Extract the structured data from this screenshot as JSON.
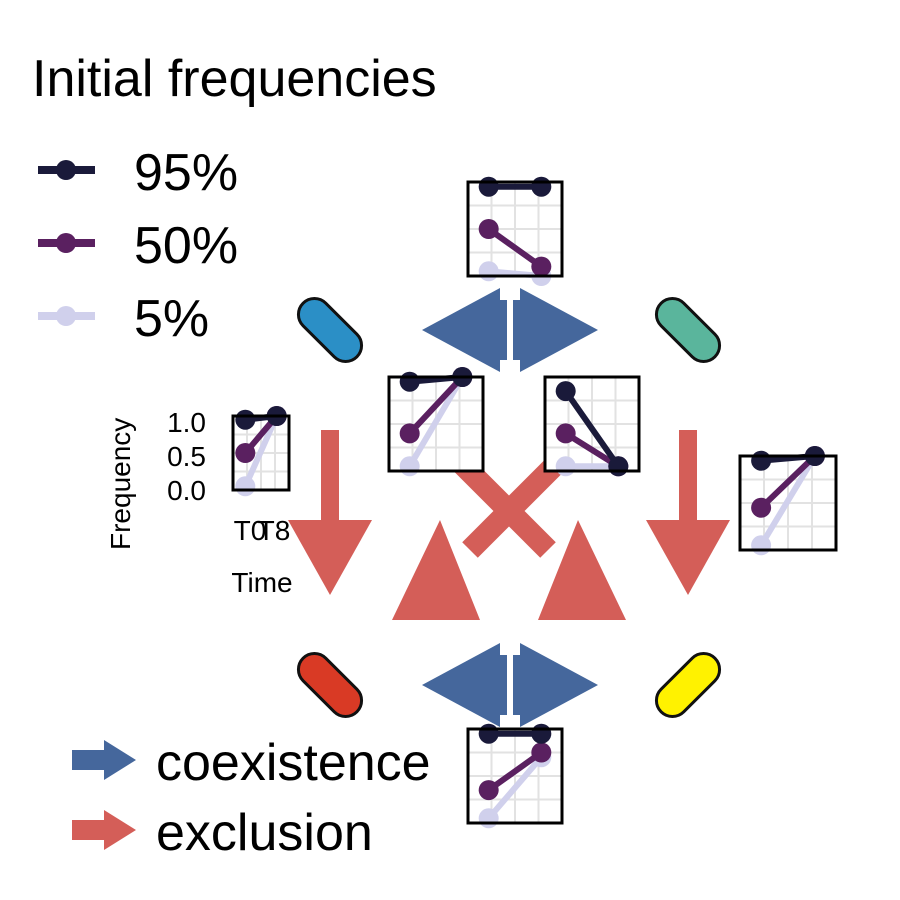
{
  "legend_frequencies": {
    "title": "Initial frequencies",
    "items": [
      {
        "label": "95%",
        "color": "#1a1a3a"
      },
      {
        "label": "50%",
        "color": "#5a2060"
      },
      {
        "label": "5%",
        "color": "#d0d0ec"
      }
    ]
  },
  "legend_interactions": {
    "items": [
      {
        "label": "coexistence",
        "color": "#45679c"
      },
      {
        "label": "exclusion",
        "color": "#d45e58"
      }
    ]
  },
  "species": [
    {
      "name": "blue-species",
      "color": "#2b8fc6"
    },
    {
      "name": "teal-species",
      "color": "#5ab59c"
    },
    {
      "name": "red-species",
      "color": "#d93a25"
    },
    {
      "name": "yellow-species",
      "color": "#fff200"
    }
  ],
  "axis": {
    "ylabel": "Frequency",
    "xlabel": "Time",
    "yticks": [
      "1.0",
      "0.5",
      "0.0"
    ],
    "xticks": [
      "T0",
      "T8"
    ]
  },
  "colors": {
    "coexistence": "#45679c",
    "exclusion": "#d45e58",
    "grid": "#e2e2e2"
  },
  "insets": [
    {
      "name": "inset-top",
      "series": [
        [
          0.95,
          0.95
        ],
        [
          0.5,
          0.1
        ],
        [
          0.05,
          0.0
        ]
      ]
    },
    {
      "name": "inset-mid-left",
      "series": [
        [
          0.95,
          1.0
        ],
        [
          0.4,
          1.0
        ],
        [
          0.05,
          1.0
        ]
      ]
    },
    {
      "name": "inset-mid-right",
      "series": [
        [
          0.85,
          0.05
        ],
        [
          0.4,
          0.05
        ],
        [
          0.05,
          0.05
        ]
      ]
    },
    {
      "name": "inset-axis-left",
      "series": [
        [
          0.95,
          1.0
        ],
        [
          0.5,
          1.0
        ],
        [
          0.05,
          1.0
        ]
      ]
    },
    {
      "name": "inset-right",
      "series": [
        [
          0.95,
          1.0
        ],
        [
          0.45,
          1.0
        ],
        [
          0.05,
          1.0
        ]
      ]
    },
    {
      "name": "inset-bottom",
      "series": [
        [
          0.95,
          0.95
        ],
        [
          0.35,
          0.75
        ],
        [
          0.05,
          0.7
        ]
      ]
    }
  ]
}
